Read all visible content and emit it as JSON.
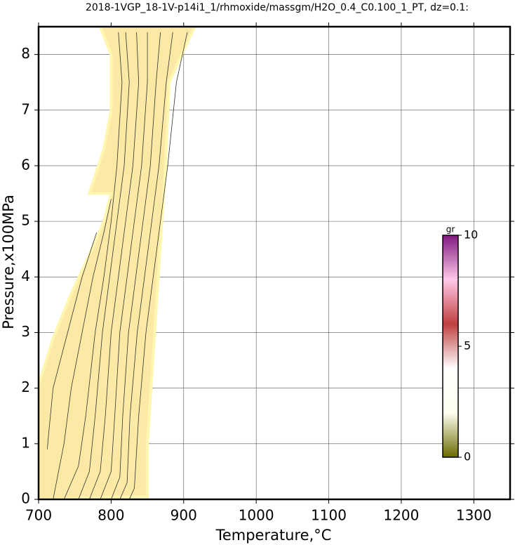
{
  "chart_data": {
    "type": "contour",
    "title": "2018-1VGP_18-1V-p14i1_1/rhmoxide/massgm/H2O_0.4_C0.100_1_PT, dz=0.1:",
    "x_label": "Temperature,°C",
    "y_label": "Pressure,x100MPa",
    "xlim": [
      700,
      1350
    ],
    "ylim": [
      0,
      8.5
    ],
    "xticks": [
      700,
      800,
      900,
      1000,
      1100,
      1200,
      1300
    ],
    "yticks": [
      0,
      1,
      2,
      3,
      4,
      5,
      6,
      7,
      8
    ],
    "grid": true,
    "fill_color": "#fde9a6",
    "line_color": "#333333",
    "region": {
      "x": [
        700,
        720,
        745,
        770,
        790,
        800,
        770,
        790,
        800,
        800,
        785,
        915,
        880,
        875,
        860,
        850,
        850,
        700
      ],
      "y": [
        2.05,
        2.9,
        3.7,
        4.4,
        5.0,
        5.5,
        5.5,
        6.3,
        7.0,
        8.0,
        8.5,
        8.5,
        7.5,
        6.0,
        3.0,
        1.0,
        0.05,
        0
      ]
    },
    "contours": [
      {
        "x": [
          712,
          714,
          720,
          740,
          760,
          780
        ],
        "y": [
          0.9,
          1.2,
          2.0,
          3.0,
          4.0,
          4.8
        ]
      },
      {
        "x": [
          720,
          735,
          745,
          760,
          775,
          790,
          800
        ],
        "y": [
          0.0,
          1.0,
          2.0,
          3.0,
          4.0,
          4.8,
          5.4
        ]
      },
      {
        "x": [
          735,
          755,
          765,
          778,
          790,
          800,
          808,
          815,
          810
        ],
        "y": [
          0.0,
          0.6,
          1.5,
          3.0,
          4.0,
          5.0,
          6.0,
          7.5,
          8.4
        ]
      },
      {
        "x": [
          755,
          770,
          778,
          788,
          798,
          808,
          818,
          825,
          820
        ],
        "y": [
          0.0,
          0.5,
          1.5,
          3.0,
          4.0,
          5.0,
          6.0,
          7.5,
          8.4
        ]
      },
      {
        "x": [
          770,
          785,
          792,
          800,
          810,
          820,
          830,
          838,
          835
        ],
        "y": [
          0.0,
          0.5,
          1.5,
          3.0,
          4.0,
          5.0,
          6.0,
          7.5,
          8.4
        ]
      },
      {
        "x": [
          785,
          800,
          805,
          812,
          822,
          832,
          842,
          850,
          850
        ],
        "y": [
          0.0,
          0.5,
          1.5,
          3.0,
          4.0,
          5.0,
          6.0,
          7.5,
          8.4
        ]
      },
      {
        "x": [
          800,
          812,
          816,
          824,
          834,
          844,
          854,
          862,
          868
        ],
        "y": [
          0.0,
          0.4,
          1.5,
          3.0,
          4.0,
          5.0,
          6.0,
          7.5,
          8.4
        ]
      },
      {
        "x": [
          812,
          822,
          826,
          836,
          846,
          856,
          866,
          876,
          885
        ],
        "y": [
          0.0,
          0.3,
          1.5,
          3.0,
          4.0,
          5.0,
          6.0,
          7.5,
          8.4
        ]
      },
      {
        "x": [
          825,
          832,
          838,
          848,
          858,
          868,
          878,
          890,
          905
        ],
        "y": [
          0.0,
          0.2,
          1.5,
          3.0,
          4.0,
          5.0,
          6.0,
          7.5,
          8.4
        ]
      }
    ],
    "colorbar": {
      "label": "gr",
      "lim": [
        0,
        10
      ],
      "ticks": [
        0,
        5,
        10
      ],
      "colors": [
        "#6b6b00",
        "#fffff0",
        "#ffffff",
        "#c04040",
        "#ffc8e8",
        "#801880"
      ]
    }
  }
}
